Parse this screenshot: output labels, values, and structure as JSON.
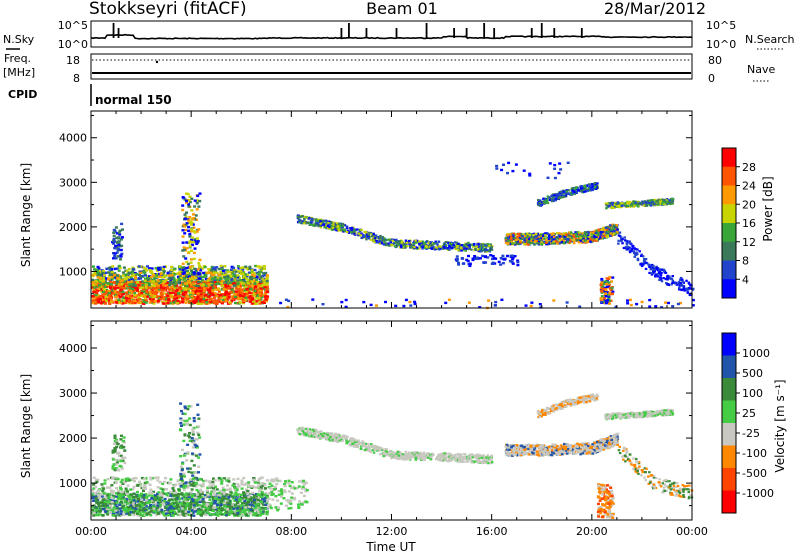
{
  "header": {
    "station": "Stokkseyri (fitACF)",
    "beam": "Beam 01",
    "date": "28/Mar/2012"
  },
  "strip_labels": {
    "nsky": "N.Sky",
    "nsky_top": "10^5",
    "nsky_bottom": "10^0",
    "nsearch": "N.Search",
    "nsearch_top": "10^5",
    "nsearch_bottom": "10^0",
    "freq_line1": "Freq.",
    "freq_line2": "[MHz]",
    "freq_top": "18",
    "freq_bottom": "8",
    "nave": "Nave",
    "nave_top": "80",
    "nave_bottom": "0",
    "cpid": "CPID",
    "cpid_mode": "normal 150"
  },
  "colors": {
    "power": [
      "#0000ff",
      "#2244cc",
      "#3a7a5a",
      "#3aa63a",
      "#c8d400",
      "#ff9900",
      "#ff5500",
      "#ff0000"
    ],
    "velocity": [
      "#ff0000",
      "#ff4400",
      "#ff8800",
      "#c8c8c0",
      "#44cc44",
      "#3a8a3a",
      "#2255aa",
      "#0000ff"
    ]
  },
  "chart_data": [
    {
      "type": "heatmap",
      "title": "Power",
      "ylabel": "Slant Range [km]",
      "xlabel": "",
      "ylim": [
        180,
        4600
      ],
      "y_ticks": [
        "1000",
        "2000",
        "3000",
        "4000"
      ],
      "x_ticks": [
        "00:00",
        "04:00",
        "08:00",
        "12:00",
        "16:00",
        "20:00",
        "00:00"
      ],
      "colorbar_label": "Power [dB]",
      "colorbar_ticks": [
        "28",
        "24",
        "20",
        "16",
        "12",
        "8",
        "4"
      ],
      "regions": [
        {
          "t0": 0.0,
          "t1": 7.0,
          "r0": 300,
          "r1": 1100,
          "level": "high"
        },
        {
          "t0": 8.5,
          "t1": 13.5,
          "r0": 1500,
          "r1": 2200,
          "level": "mid"
        },
        {
          "t0": 16.5,
          "t1": 21.0,
          "r0": 1550,
          "r1": 2900,
          "level": "mid-high"
        },
        {
          "t0": 21.0,
          "t1": 24.0,
          "r0": 700,
          "r1": 2700,
          "level": "low"
        }
      ]
    },
    {
      "type": "heatmap",
      "title": "Velocity",
      "ylabel": "Slant Range [km]",
      "xlabel": "Time UT",
      "ylim": [
        180,
        4600
      ],
      "y_ticks": [
        "1000",
        "2000",
        "3000",
        "4000"
      ],
      "x_ticks": [
        "00:00",
        "04:00",
        "08:00",
        "12:00",
        "16:00",
        "20:00",
        "00:00"
      ],
      "colorbar_label": "Velocity [m s⁻¹]",
      "colorbar_ticks": [
        "1000",
        "500",
        "100",
        "25",
        "-25",
        "-100",
        "-500",
        "-1000"
      ]
    }
  ]
}
